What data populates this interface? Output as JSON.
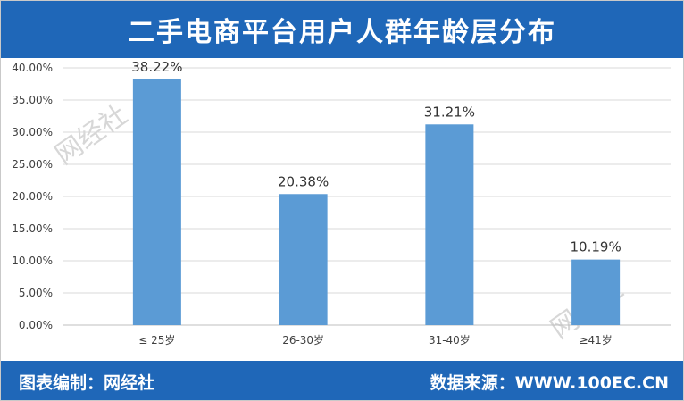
{
  "header": {
    "title": "二手电商平台用户人群年龄层分布"
  },
  "footer": {
    "left": "图表编制：网经社",
    "right": "数据来源：WWW.100EC.CN"
  },
  "watermark": {
    "text": "网经社"
  },
  "colors": {
    "brand": "#1f67b8",
    "bar": "#5b9bd5",
    "grid": "#d9d9d9"
  },
  "chart_data": {
    "type": "bar",
    "title": "二手电商平台用户人群年龄层分布",
    "categories": [
      "≤ 25岁",
      "26-30岁",
      "31-40岁",
      "≥41岁"
    ],
    "values": [
      38.22,
      20.38,
      31.21,
      10.19
    ],
    "data_labels": [
      "38.22%",
      "20.38%",
      "31.21%",
      "10.19%"
    ],
    "yticks": [
      "0.00%",
      "5.00%",
      "10.00%",
      "15.00%",
      "20.00%",
      "25.00%",
      "30.00%",
      "35.00%",
      "40.00%"
    ],
    "ylim": [
      0,
      40
    ],
    "xlabel": "",
    "ylabel": "",
    "grid": true,
    "legend": "none"
  }
}
